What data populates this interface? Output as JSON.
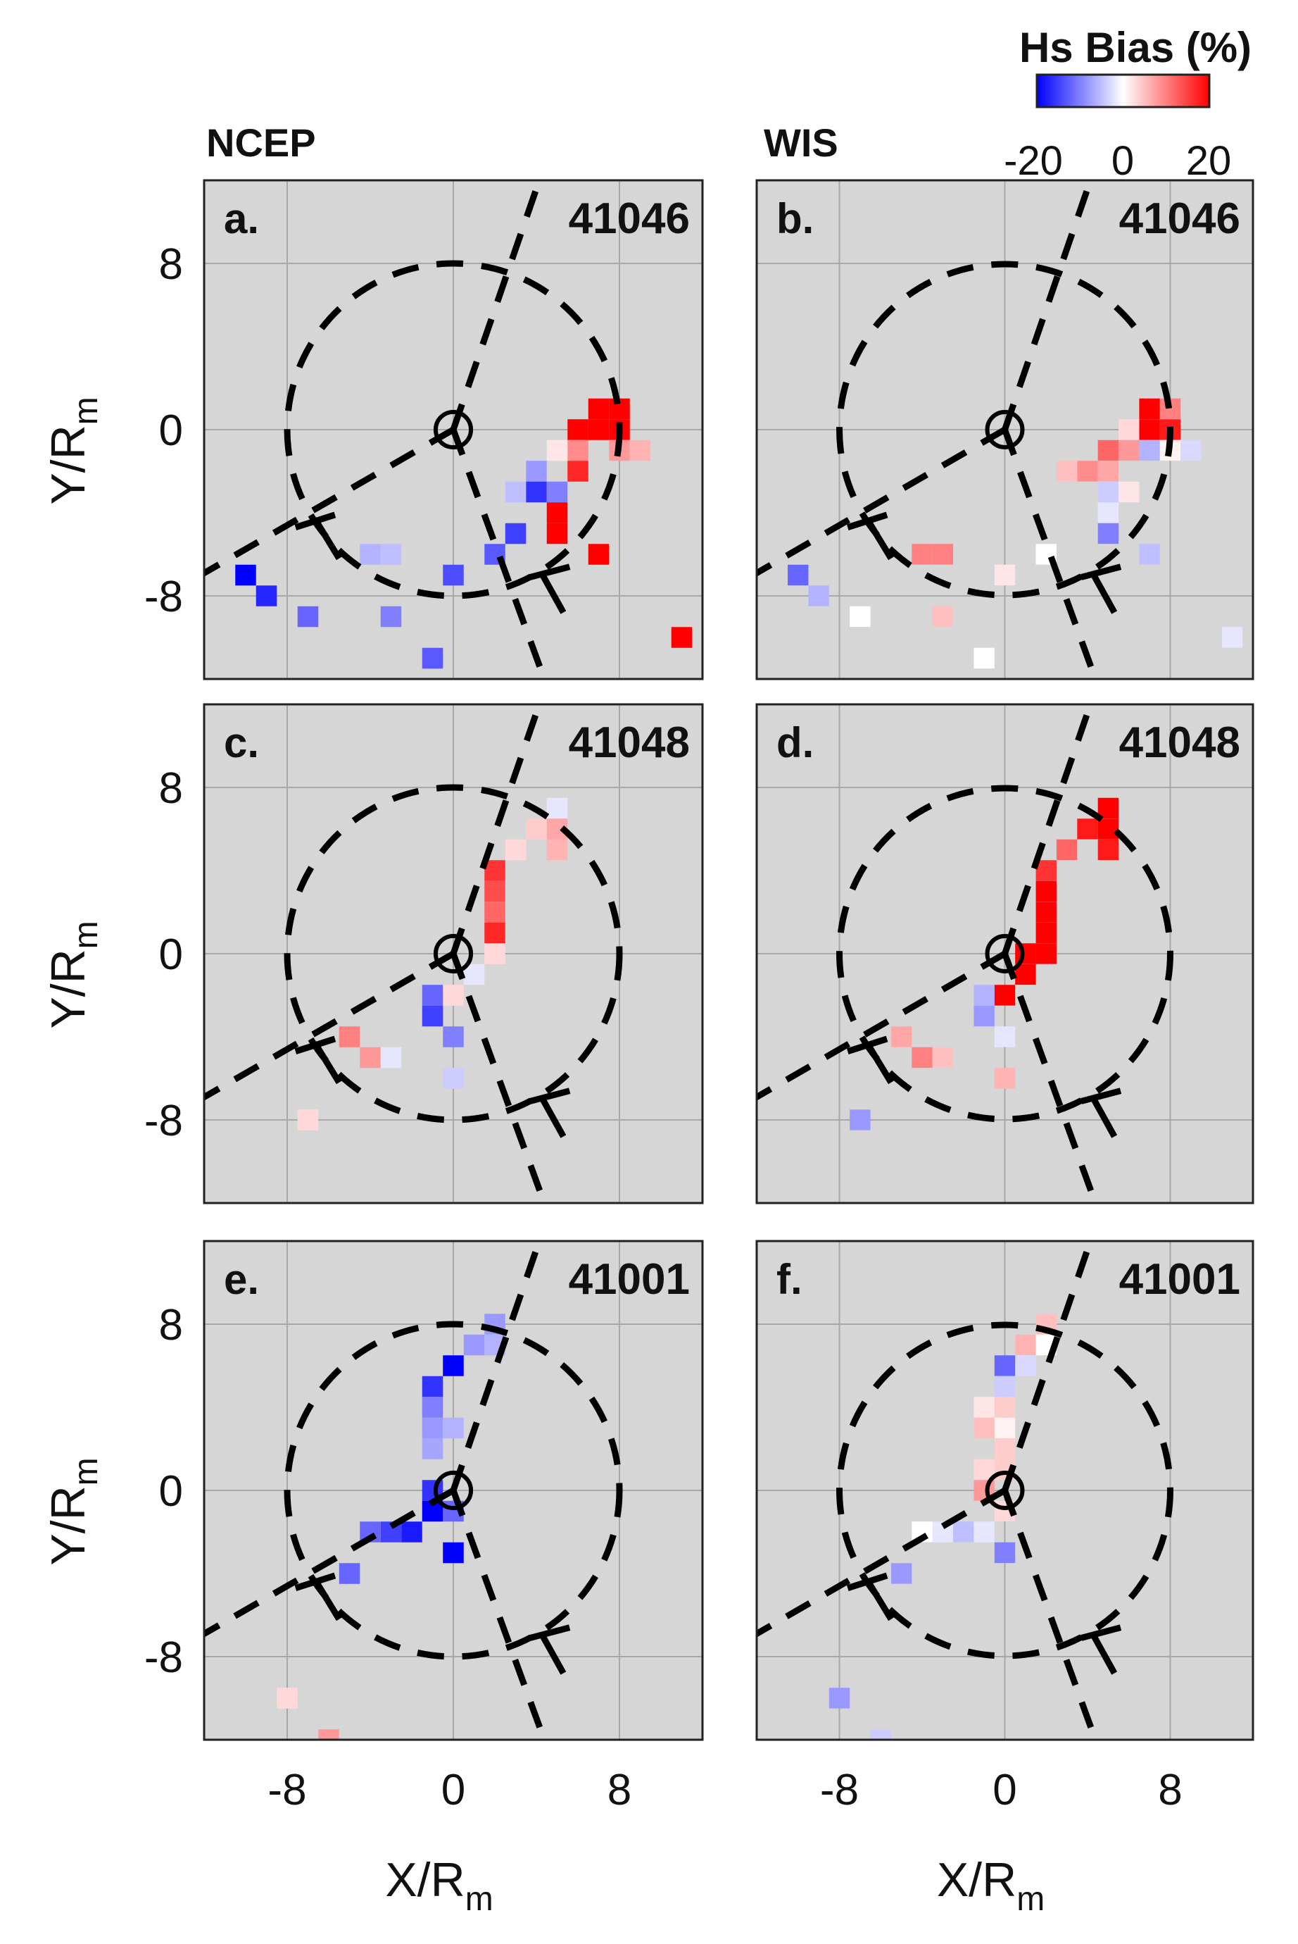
{
  "figure": {
    "colorbar": {
      "title": "Hs Bias (%)",
      "ticks": [
        "-20",
        "0",
        "20"
      ],
      "range": [
        -20,
        20
      ],
      "colormap": [
        "#0000ff",
        "#ffffff",
        "#ff0000"
      ]
    },
    "column_headers": [
      "NCEP",
      "WIS"
    ],
    "axis_tick_labels": [
      "-8",
      "0",
      "8"
    ],
    "background": "#d6d6d6"
  },
  "chart_data": [
    {
      "type": "heatmap",
      "panel": "a.",
      "buoy": "41046",
      "model": "NCEP",
      "xlabel": "X/Rm",
      "ylabel": "Y/Rm",
      "xlim": [
        -12,
        12
      ],
      "ylim": [
        -12,
        12
      ],
      "xticks": [
        -8,
        0,
        8
      ],
      "yticks": [
        -8,
        0,
        8
      ],
      "grid": true,
      "cells": [
        {
          "x": 6,
          "y": 0,
          "v": 20
        },
        {
          "x": 7,
          "y": 0,
          "v": 20
        },
        {
          "x": 8,
          "y": 0,
          "v": 20
        },
        {
          "x": 7,
          "y": 1,
          "v": 20
        },
        {
          "x": 8,
          "y": 1,
          "v": 20
        },
        {
          "x": 8,
          "y": -1,
          "v": 8
        },
        {
          "x": 9,
          "y": -1,
          "v": 6
        },
        {
          "x": 6,
          "y": -1,
          "v": 9
        },
        {
          "x": 5,
          "y": -1,
          "v": 2
        },
        {
          "x": 4,
          "y": -2,
          "v": -8
        },
        {
          "x": 6,
          "y": -2,
          "v": 17
        },
        {
          "x": 4,
          "y": -3,
          "v": -16
        },
        {
          "x": 5,
          "y": -3,
          "v": -10
        },
        {
          "x": 3,
          "y": -3,
          "v": -5
        },
        {
          "x": 5,
          "y": -4,
          "v": 20
        },
        {
          "x": 5,
          "y": -5,
          "v": 20
        },
        {
          "x": 3,
          "y": -5,
          "v": -15
        },
        {
          "x": 2,
          "y": -6,
          "v": -13
        },
        {
          "x": 7,
          "y": -6,
          "v": 20
        },
        {
          "x": -4,
          "y": -6,
          "v": -6
        },
        {
          "x": -3,
          "y": -6,
          "v": -5
        },
        {
          "x": 0,
          "y": -7,
          "v": -14
        },
        {
          "x": -10,
          "y": -7,
          "v": -20
        },
        {
          "x": -9,
          "y": -8,
          "v": -17
        },
        {
          "x": -7,
          "y": -9,
          "v": -12
        },
        {
          "x": -3,
          "y": -9,
          "v": -10
        },
        {
          "x": -1,
          "y": -11,
          "v": -13
        },
        {
          "x": 11,
          "y": -10,
          "v": 20
        }
      ]
    },
    {
      "type": "heatmap",
      "panel": "b.",
      "buoy": "41046",
      "model": "WIS",
      "xlabel": "X/Rm",
      "ylabel": "Y/Rm",
      "xlim": [
        -12,
        12
      ],
      "ylim": [
        -12,
        12
      ],
      "xticks": [
        -8,
        0,
        8
      ],
      "yticks": [
        -8,
        0,
        8
      ],
      "grid": true,
      "cells": [
        {
          "x": 7,
          "y": 1,
          "v": 20
        },
        {
          "x": 8,
          "y": 1,
          "v": 10
        },
        {
          "x": 7,
          "y": 0,
          "v": 20
        },
        {
          "x": 8,
          "y": 0,
          "v": 18
        },
        {
          "x": 6,
          "y": 0,
          "v": 3
        },
        {
          "x": 6,
          "y": -1,
          "v": 8
        },
        {
          "x": 5,
          "y": -1,
          "v": 12
        },
        {
          "x": 7,
          "y": -1,
          "v": -6
        },
        {
          "x": 8,
          "y": -1,
          "v": 1
        },
        {
          "x": 9,
          "y": -1,
          "v": -3
        },
        {
          "x": 4,
          "y": -2,
          "v": 9
        },
        {
          "x": 5,
          "y": -2,
          "v": 7
        },
        {
          "x": 3,
          "y": -2,
          "v": 5
        },
        {
          "x": 5,
          "y": -3,
          "v": -4
        },
        {
          "x": 6,
          "y": -3,
          "v": 2
        },
        {
          "x": 5,
          "y": -4,
          "v": -2
        },
        {
          "x": 5,
          "y": -5,
          "v": -10
        },
        {
          "x": 7,
          "y": -6,
          "v": -5
        },
        {
          "x": 2,
          "y": -6,
          "v": 0
        },
        {
          "x": -4,
          "y": -6,
          "v": 10
        },
        {
          "x": -3,
          "y": -6,
          "v": 10
        },
        {
          "x": 0,
          "y": -7,
          "v": 2
        },
        {
          "x": -10,
          "y": -7,
          "v": -12
        },
        {
          "x": -9,
          "y": -8,
          "v": -6
        },
        {
          "x": -7,
          "y": -9,
          "v": 0
        },
        {
          "x": -3,
          "y": -9,
          "v": 5
        },
        {
          "x": -1,
          "y": -11,
          "v": 0
        },
        {
          "x": 11,
          "y": -10,
          "v": -2
        }
      ]
    },
    {
      "type": "heatmap",
      "panel": "c.",
      "buoy": "41048",
      "model": "NCEP",
      "xlabel": "X/Rm",
      "ylabel": "Y/Rm",
      "xlim": [
        -12,
        12
      ],
      "ylim": [
        -12,
        12
      ],
      "xticks": [
        -8,
        0,
        8
      ],
      "yticks": [
        -8,
        0,
        8
      ],
      "grid": true,
      "cells": [
        {
          "x": 5,
          "y": 7,
          "v": -2
        },
        {
          "x": 4,
          "y": 6,
          "v": 4
        },
        {
          "x": 5,
          "y": 6,
          "v": 7
        },
        {
          "x": 3,
          "y": 5,
          "v": 3
        },
        {
          "x": 5,
          "y": 5,
          "v": 6
        },
        {
          "x": 2,
          "y": 4,
          "v": 16
        },
        {
          "x": 2,
          "y": 3,
          "v": 14
        },
        {
          "x": 2,
          "y": 2,
          "v": 12
        },
        {
          "x": 2,
          "y": 1,
          "v": 17
        },
        {
          "x": 2,
          "y": 0,
          "v": 3
        },
        {
          "x": 1,
          "y": -1,
          "v": -2
        },
        {
          "x": -1,
          "y": -2,
          "v": -12
        },
        {
          "x": 0,
          "y": -2,
          "v": 3
        },
        {
          "x": -1,
          "y": -3,
          "v": -15
        },
        {
          "x": 0,
          "y": -4,
          "v": -10
        },
        {
          "x": -5,
          "y": -4,
          "v": 10
        },
        {
          "x": -4,
          "y": -5,
          "v": 8
        },
        {
          "x": -3,
          "y": -5,
          "v": -2
        },
        {
          "x": 0,
          "y": -6,
          "v": -4
        },
        {
          "x": -7,
          "y": -8,
          "v": 3
        }
      ]
    },
    {
      "type": "heatmap",
      "panel": "d.",
      "buoy": "41048",
      "model": "WIS",
      "xlabel": "X/Rm",
      "ylabel": "Y/Rm",
      "xlim": [
        -12,
        12
      ],
      "ylim": [
        -12,
        12
      ],
      "xticks": [
        -8,
        0,
        8
      ],
      "yticks": [
        -8,
        0,
        8
      ],
      "grid": true,
      "cells": [
        {
          "x": 5,
          "y": 7,
          "v": 20
        },
        {
          "x": 4,
          "y": 6,
          "v": 18
        },
        {
          "x": 5,
          "y": 6,
          "v": 20
        },
        {
          "x": 3,
          "y": 5,
          "v": 12
        },
        {
          "x": 5,
          "y": 5,
          "v": 18
        },
        {
          "x": 2,
          "y": 4,
          "v": 16
        },
        {
          "x": 2,
          "y": 3,
          "v": 20
        },
        {
          "x": 2,
          "y": 2,
          "v": 20
        },
        {
          "x": 2,
          "y": 1,
          "v": 20
        },
        {
          "x": 2,
          "y": 0,
          "v": 20
        },
        {
          "x": 1,
          "y": 0,
          "v": 20
        },
        {
          "x": 1,
          "y": -1,
          "v": 20
        },
        {
          "x": 0,
          "y": -2,
          "v": 20
        },
        {
          "x": -1,
          "y": -2,
          "v": -6
        },
        {
          "x": -1,
          "y": -3,
          "v": -8
        },
        {
          "x": 0,
          "y": -4,
          "v": -2
        },
        {
          "x": -5,
          "y": -4,
          "v": 7
        },
        {
          "x": -4,
          "y": -5,
          "v": 10
        },
        {
          "x": -3,
          "y": -5,
          "v": 5
        },
        {
          "x": 0,
          "y": -6,
          "v": 6
        },
        {
          "x": -7,
          "y": -8,
          "v": -8
        }
      ]
    },
    {
      "type": "heatmap",
      "panel": "e.",
      "buoy": "41001",
      "model": "NCEP",
      "xlabel": "X/Rm",
      "ylabel": "Y/Rm",
      "xlim": [
        -12,
        12
      ],
      "ylim": [
        -12,
        12
      ],
      "xticks": [
        -8,
        0,
        8
      ],
      "yticks": [
        -8,
        0,
        8
      ],
      "grid": true,
      "cells": [
        {
          "x": 2,
          "y": 8,
          "v": -8
        },
        {
          "x": 2,
          "y": 7,
          "v": -6
        },
        {
          "x": 1,
          "y": 7,
          "v": -8
        },
        {
          "x": 0,
          "y": 6,
          "v": -20
        },
        {
          "x": -1,
          "y": 5,
          "v": -16
        },
        {
          "x": -1,
          "y": 4,
          "v": -10
        },
        {
          "x": -1,
          "y": 3,
          "v": -8
        },
        {
          "x": 0,
          "y": 3,
          "v": -6
        },
        {
          "x": -1,
          "y": 2,
          "v": -7
        },
        {
          "x": -1,
          "y": 0,
          "v": -16
        },
        {
          "x": -1,
          "y": -1,
          "v": -20
        },
        {
          "x": 0,
          "y": -1,
          "v": -12
        },
        {
          "x": -2,
          "y": -2,
          "v": -18
        },
        {
          "x": -3,
          "y": -2,
          "v": -15
        },
        {
          "x": -4,
          "y": -2,
          "v": -12
        },
        {
          "x": 0,
          "y": -3,
          "v": -20
        },
        {
          "x": -5,
          "y": -4,
          "v": -12
        },
        {
          "x": -8,
          "y": -10,
          "v": 3
        },
        {
          "x": -6,
          "y": -12,
          "v": 8
        }
      ]
    },
    {
      "type": "heatmap",
      "panel": "f.",
      "buoy": "41001",
      "model": "WIS",
      "xlabel": "X/Rm",
      "ylabel": "Y/Rm",
      "xlim": [
        -12,
        12
      ],
      "ylim": [
        -12,
        12
      ],
      "xticks": [
        -8,
        0,
        8
      ],
      "yticks": [
        -8,
        0,
        8
      ],
      "grid": true,
      "cells": [
        {
          "x": 2,
          "y": 8,
          "v": 5
        },
        {
          "x": 1,
          "y": 7,
          "v": 6
        },
        {
          "x": 2,
          "y": 7,
          "v": 0
        },
        {
          "x": 1,
          "y": 6,
          "v": -3
        },
        {
          "x": 0,
          "y": 6,
          "v": -12
        },
        {
          "x": 0,
          "y": 5,
          "v": -4
        },
        {
          "x": -1,
          "y": 4,
          "v": 2
        },
        {
          "x": 0,
          "y": 4,
          "v": 4
        },
        {
          "x": 0,
          "y": 3,
          "v": 1
        },
        {
          "x": -1,
          "y": 3,
          "v": 5
        },
        {
          "x": 0,
          "y": 2,
          "v": 4
        },
        {
          "x": -1,
          "y": 1,
          "v": 3
        },
        {
          "x": 0,
          "y": 1,
          "v": 4
        },
        {
          "x": -1,
          "y": 0,
          "v": 8
        },
        {
          "x": 0,
          "y": -1,
          "v": 3
        },
        {
          "x": -1,
          "y": -2,
          "v": -2
        },
        {
          "x": -2,
          "y": -2,
          "v": -5
        },
        {
          "x": -3,
          "y": -2,
          "v": -2
        },
        {
          "x": -4,
          "y": -2,
          "v": 0
        },
        {
          "x": 0,
          "y": -3,
          "v": -10
        },
        {
          "x": -5,
          "y": -4,
          "v": -8
        },
        {
          "x": -8,
          "y": -10,
          "v": -8
        },
        {
          "x": -6,
          "y": -12,
          "v": -4
        }
      ]
    }
  ]
}
